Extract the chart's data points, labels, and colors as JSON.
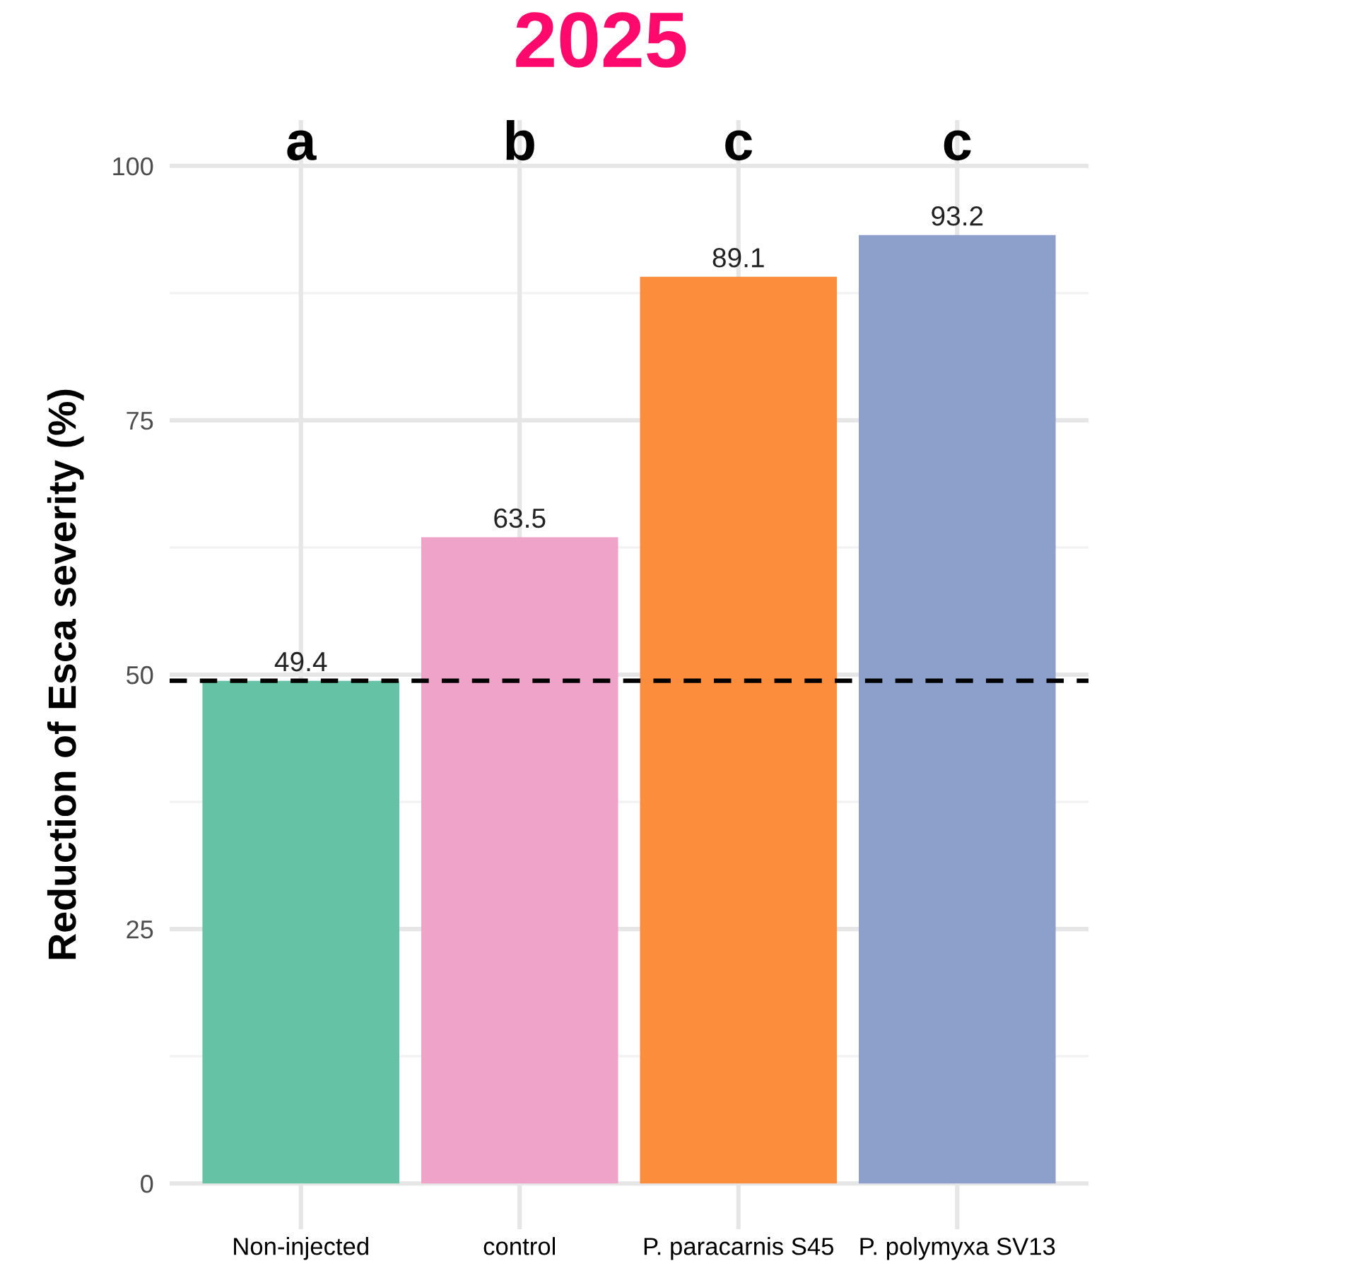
{
  "chart_data": {
    "type": "bar",
    "title": "2025",
    "ylabel": "Reduction of Esca severity (%)",
    "categories": [
      "Non-injected",
      "control",
      "P. paracarnis S45",
      "P. polymyxa SV13"
    ],
    "values": [
      49.4,
      63.5,
      89.1,
      93.2
    ],
    "colors": [
      "#66c2a5",
      "#efa3c8",
      "#fc8d3d",
      "#8da0cb"
    ],
    "data_labels": true,
    "ylim": [
      -4.5,
      104.5
    ],
    "yticks": [
      0,
      {
        "value": 12.5,
        "label": null
      },
      25,
      {
        "value": 37.5,
        "label": null
      },
      50,
      {
        "value": 62.5,
        "label": null
      },
      75,
      {
        "value": 87.5,
        "label": null
      },
      100
    ],
    "grid": true,
    "ref_lines": [
      {
        "axis": "y",
        "value": 49.4,
        "label": null,
        "color": "#000000",
        "line_style": "dashed"
      }
    ],
    "annotations": [
      "a",
      "b",
      "c",
      "c"
    ]
  }
}
